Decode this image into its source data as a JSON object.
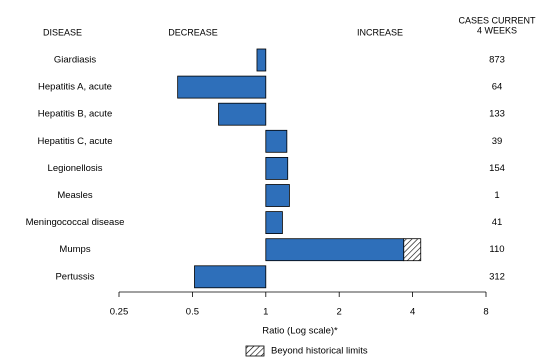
{
  "chart_data": {
    "type": "bar",
    "orientation": "horizontal",
    "headers": {
      "disease": "DISEASE",
      "decrease": "DECREASE",
      "increase": "INCREASE",
      "cases": [
        "CASES CURRENT",
        "4 WEEKS"
      ]
    },
    "categories": [
      "Giardiasis",
      "Hepatitis A, acute",
      "Hepatitis B, acute",
      "Hepatitis C, acute",
      "Legionellosis",
      "Measles",
      "Meningococcal disease",
      "Mumps",
      "Pertussis"
    ],
    "values": [
      0.92,
      0.435,
      0.64,
      1.22,
      1.23,
      1.25,
      1.17,
      4.32,
      0.51
    ],
    "historical_limit": [
      null,
      null,
      null,
      null,
      null,
      null,
      null,
      3.68,
      null
    ],
    "cases": [
      873,
      64,
      133,
      39,
      154,
      1,
      41,
      110,
      312
    ],
    "color": "#2e6fba",
    "xscale": "log",
    "baseline": 1,
    "xlim": [
      0.25,
      8
    ],
    "xticks": [
      0.25,
      0.5,
      1,
      2,
      4,
      8
    ],
    "xlabel": "Ratio (Log scale)*",
    "legend": "Beyond historical limits"
  }
}
